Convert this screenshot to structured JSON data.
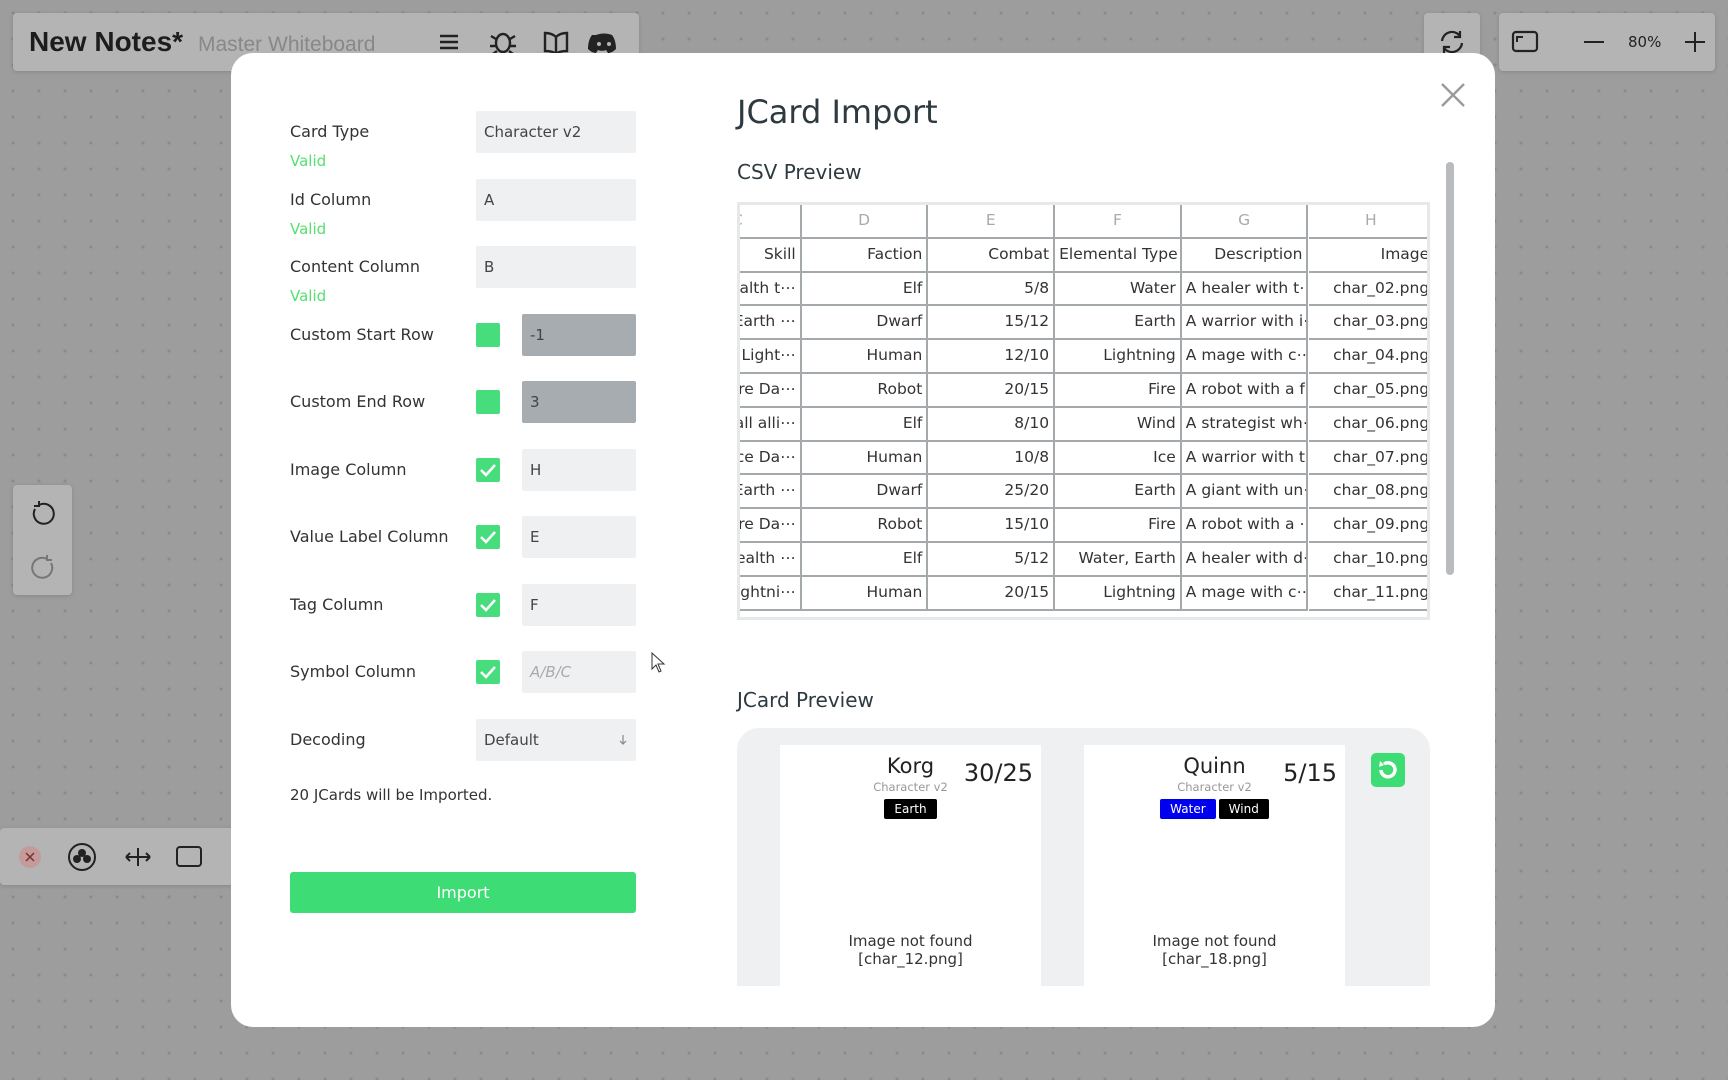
{
  "header": {
    "title": "New Notes*",
    "subtitle": "Master Whiteboard",
    "zoom": "80%"
  },
  "dialog": {
    "title": "JCard Import",
    "form": {
      "fields": [
        {
          "label": "Card Type",
          "value": "Character v2",
          "status": "Valid"
        },
        {
          "label": "Id Column",
          "value": "A",
          "status": "Valid"
        },
        {
          "label": "Content Column",
          "value": "B",
          "status": "Valid"
        },
        {
          "label": "Custom Start Row",
          "value": "-1",
          "checkbox": "unchecked"
        },
        {
          "label": "Custom End Row",
          "value": "3",
          "checkbox": "unchecked"
        },
        {
          "label": "Image Column",
          "value": "H",
          "checkbox": "checked"
        },
        {
          "label": "Value Label Column",
          "value": "E",
          "checkbox": "checked"
        },
        {
          "label": "Tag Column",
          "value": "F",
          "checkbox": "checked"
        },
        {
          "label": "Symbol Column",
          "placeholder": "A/B/C",
          "checkbox": "checked"
        },
        {
          "label": "Decoding",
          "value": "Default",
          "select": true
        }
      ],
      "summary": "20 JCards will be Imported.",
      "button": "Import"
    },
    "csv_preview": {
      "title": "CSV Preview",
      "columns": [
        "C",
        "D",
        "E",
        "F",
        "G",
        "H"
      ],
      "headers": [
        "Skill",
        "Faction",
        "Combat",
        "Elemental Type",
        "Description",
        "Image"
      ],
      "rows": [
        [
          "ealth t⋯",
          "Elf",
          "5/8",
          "Water",
          "A healer with t⋯",
          "char_02.png"
        ],
        [
          "Earth ⋯",
          "Dwarf",
          "15/12",
          "Earth",
          "A warrior with i⋯",
          "char_03.png"
        ],
        [
          ") Light⋯",
          "Human",
          "12/10",
          "Lightning",
          "A mage with c⋯",
          "char_04.png"
        ],
        [
          "ire Da⋯",
          "Robot",
          "20/15",
          "Fire",
          "A robot with a f⋯",
          "char_05.png"
        ],
        [
          "all alli⋯",
          "Elf",
          "8/10",
          "Wind",
          "A strategist wh⋯",
          "char_06.png"
        ],
        [
          "Ice Da⋯",
          "Human",
          "10/8",
          "Ice",
          "A warrior with t⋯",
          "char_07.png"
        ],
        [
          "Earth ⋯",
          "Dwarf",
          "25/20",
          "Earth",
          "A giant with un⋯",
          "char_08.png"
        ],
        [
          "ire Da⋯",
          "Robot",
          "15/10",
          "Fire",
          "A robot with a ⋯",
          "char_09.png"
        ],
        [
          "lealth ⋯",
          "Elf",
          "5/12",
          "Water, Earth",
          "A healer with d⋯",
          "char_10.png"
        ],
        [
          "ightni⋯",
          "Human",
          "20/15",
          "Lightning",
          "A mage with c⋯",
          "char_11.png"
        ]
      ]
    },
    "jcard_preview": {
      "title": "JCard Preview",
      "cards": [
        {
          "name": "Korg",
          "type": "Character v2",
          "value": "30/25",
          "tags": [
            {
              "label": "Earth",
              "color": "#000000"
            }
          ],
          "image_text": [
            "Image not found",
            "[char_12.png]"
          ]
        },
        {
          "name": "Quinn",
          "type": "Character v2",
          "value": "5/15",
          "tags": [
            {
              "label": "Water",
              "color": "#0000ee"
            },
            {
              "label": "Wind",
              "color": "#000000"
            }
          ],
          "image_text": [
            "Image not found",
            "[char_18.png]"
          ]
        }
      ]
    }
  }
}
